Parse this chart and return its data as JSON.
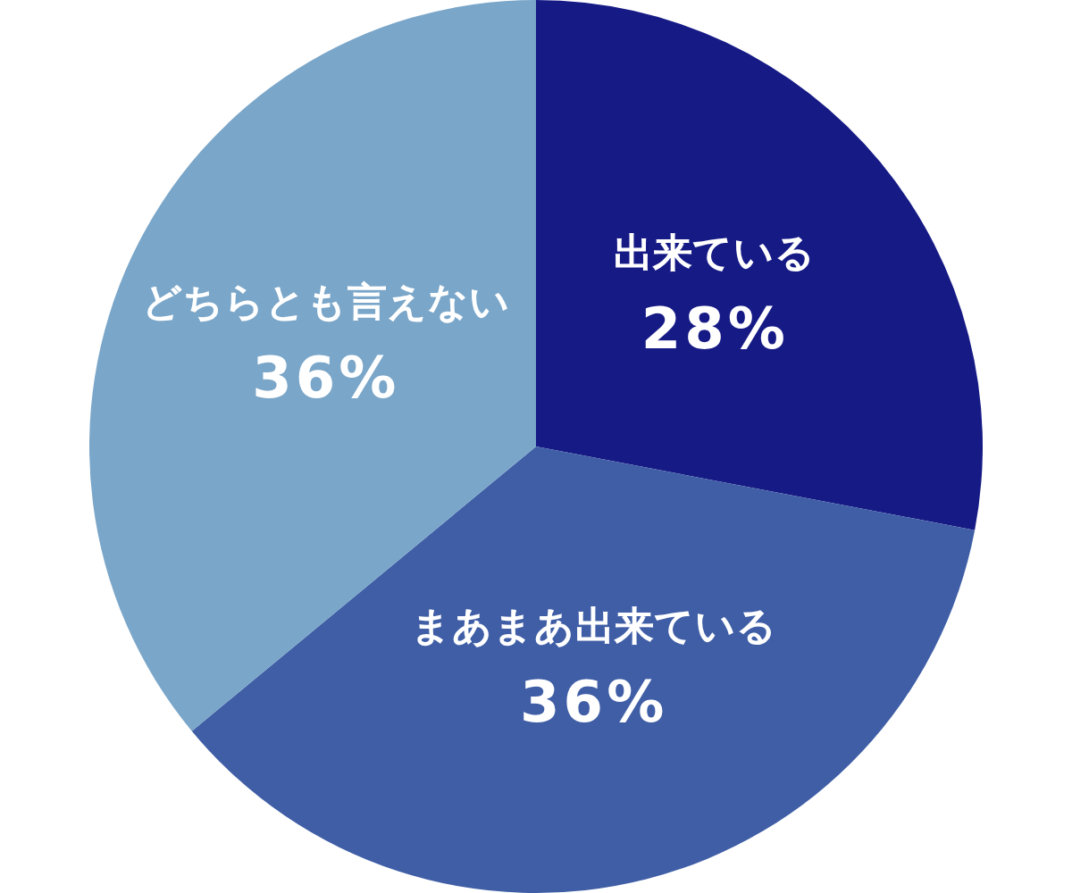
{
  "chart_data": {
    "type": "pie",
    "categories": [
      "出来ている",
      "まあまあ出来ている",
      "どちらとも言えない"
    ],
    "values": [
      28,
      36,
      36
    ],
    "colors": [
      "#161a85",
      "#3f5ea6",
      "#7aa6c9"
    ],
    "value_labels": [
      "28%",
      "36%",
      "36%"
    ]
  }
}
